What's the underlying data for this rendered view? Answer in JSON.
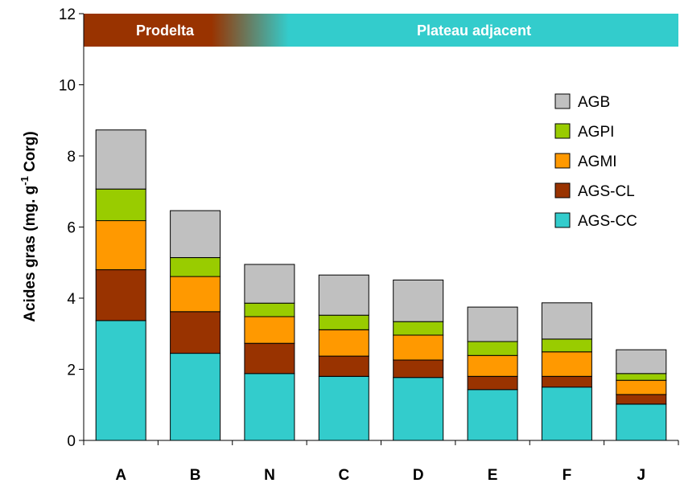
{
  "chart_data": {
    "type": "bar",
    "stacked": true,
    "categories": [
      "A",
      "B",
      "N",
      "C",
      "D",
      "E",
      "F",
      "J"
    ],
    "series": [
      {
        "name": "AGS-CC",
        "color": "#33CCCC",
        "values": [
          3.37,
          2.45,
          1.88,
          1.8,
          1.77,
          1.43,
          1.5,
          1.02
        ]
      },
      {
        "name": "AGS-CL",
        "color": "#993300",
        "values": [
          1.43,
          1.17,
          0.85,
          0.57,
          0.49,
          0.37,
          0.3,
          0.27
        ]
      },
      {
        "name": "AGMI",
        "color": "#FF9900",
        "values": [
          1.38,
          0.99,
          0.75,
          0.74,
          0.7,
          0.59,
          0.69,
          0.4
        ]
      },
      {
        "name": "AGPI",
        "color": "#99CC00",
        "values": [
          0.89,
          0.53,
          0.38,
          0.41,
          0.38,
          0.39,
          0.36,
          0.19
        ]
      },
      {
        "name": "AGB",
        "color": "#C0C0C0",
        "values": [
          1.66,
          1.32,
          1.09,
          1.13,
          1.17,
          0.97,
          1.02,
          0.67
        ]
      }
    ],
    "ylabel_main": "Acides gras (mg. g",
    "ylabel_sup": "-1",
    "ylabel_tail": " Corg)",
    "xlabel": "",
    "ylim": [
      0,
      12
    ],
    "yticks": [
      "0",
      "2",
      "4",
      "6",
      "8",
      "10",
      "12"
    ],
    "grid": false,
    "legend_position": "right",
    "legend_order": [
      "AGB",
      "AGPI",
      "AGMI",
      "AGS-CL",
      "AGS-CC"
    ],
    "bands": [
      {
        "label": "Prodelta",
        "color": "#993300"
      },
      {
        "label": "Plateau adjacent",
        "color": "#33CCCC"
      }
    ]
  }
}
